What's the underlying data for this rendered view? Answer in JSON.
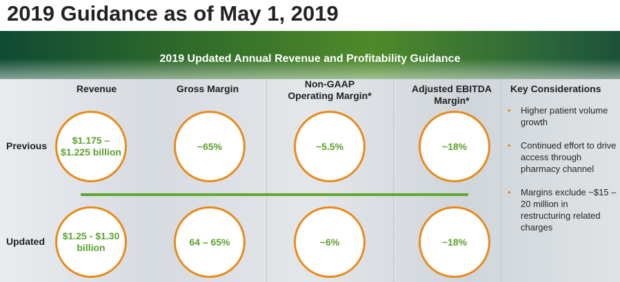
{
  "title": "2019 Guidance as of May 1, 2019",
  "banner": {
    "text": "2019 Updated Annual Revenue and Profitability Guidance"
  },
  "columns": {
    "revenue": "Revenue",
    "gross_margin": "Gross Margin",
    "non_gaap_line1": "Non-GAAP",
    "non_gaap_line2": "Operating Margin*",
    "ebitda_line1": "Adjusted EBITDA",
    "ebitda_line2": "Margin*"
  },
  "rows": {
    "previous": {
      "label": "Previous",
      "revenue_line1": "$1.175 –",
      "revenue_line2": "$1.225 billion",
      "gross_margin": "~65%",
      "non_gaap_operating_margin": "~5.5%",
      "adjusted_ebitda_margin": "~18%"
    },
    "updated": {
      "label": "Updated",
      "revenue_line1": "$1.25 - $1.30",
      "revenue_line2": "billion",
      "gross_margin": "64 – 65%",
      "non_gaap_operating_margin": "~6%",
      "adjusted_ebitda_margin": "~18%"
    }
  },
  "key_considerations": {
    "title": "Key Considerations",
    "items": [
      "Higher patient volume growth",
      "Continued effort to drive access through pharmacy channel",
      "Margins exclude ~$15 – 20 million in restructuring related charges"
    ]
  },
  "colors": {
    "accent_orange": "#e88a1a",
    "value_green": "#5aa02c",
    "divider_green": "#61a830"
  }
}
